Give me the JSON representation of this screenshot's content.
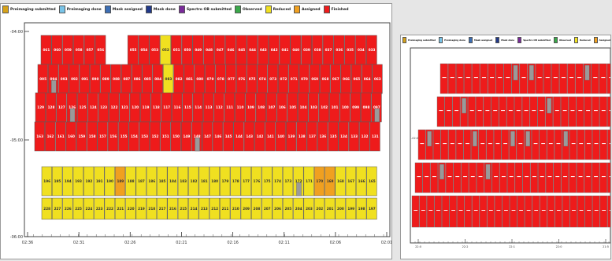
{
  "legend_left": [
    {
      "label": "Preimaging submitted",
      "color": "#d6a21a"
    },
    {
      "label": "Preimaging done",
      "color": "#79c4e8"
    },
    {
      "label": "Mask assigned",
      "color": "#3c6eb4"
    },
    {
      "label": "Mask done",
      "color": "#223a8a"
    },
    {
      "label": "Spectro OB submitted",
      "color": "#7a2a9a"
    },
    {
      "label": "Observed",
      "color": "#3aa84a"
    },
    {
      "label": "Reduced",
      "color": "#f0e020"
    },
    {
      "label": "Assigned",
      "color": "#f0a020"
    },
    {
      "label": "Finished",
      "color": "#ee1b1b"
    }
  ],
  "legend_right": [
    {
      "label": "Preimaging submitted",
      "color": "#d6a21a"
    },
    {
      "label": "Preimaging done",
      "color": "#79c4e8"
    },
    {
      "label": "Mask assigned",
      "color": "#3c6eb4"
    },
    {
      "label": "Mask done",
      "color": "#223a8a"
    },
    {
      "label": "Spectro OB submitted",
      "color": "#7a2a9a"
    },
    {
      "label": "Observed",
      "color": "#3aa84a"
    },
    {
      "label": "Reduced",
      "color": "#f0e020"
    },
    {
      "label": "Assigned",
      "color": "#f0a020"
    },
    {
      "label": "Finished",
      "color": "#ee1b1b"
    }
  ],
  "left_grid": {
    "y_ticks": [
      "-04:00",
      "-05:00",
      "-06:00"
    ],
    "x_ticks": [
      "02:36",
      "02:31",
      "02:26",
      "02:21",
      "02:16",
      "02:11",
      "02:06",
      "02:01"
    ],
    "rows": [
      {
        "cells": [
          "061",
          "060",
          "059",
          "058",
          "057",
          "056",
          "",
          "",
          "055",
          "054",
          "053",
          "052",
          "051",
          "050",
          "049",
          "048",
          "047",
          "046",
          "045",
          "044",
          "043",
          "042",
          "041",
          "040",
          "039",
          "038",
          "037",
          "036",
          "035",
          "034",
          "033"
        ],
        "status": [
          "F",
          "F",
          "F",
          "F",
          "F",
          "F",
          "",
          "",
          "F",
          "F",
          "F",
          "R",
          "F",
          "F",
          "F",
          "F",
          "F",
          "F",
          "F",
          "F",
          "F",
          "F",
          "F",
          "F",
          "F",
          "F",
          "F",
          "F",
          "F",
          "F",
          "F"
        ]
      },
      {
        "cells": [
          "095",
          "094",
          "093",
          "092",
          "091",
          "090",
          "089",
          "088",
          "087",
          "086",
          "085",
          "084",
          "083",
          "082",
          "081",
          "080",
          "079",
          "078",
          "077",
          "076",
          "075",
          "074",
          "073",
          "072",
          "071",
          "070",
          "069",
          "068",
          "067",
          "066",
          "065",
          "064",
          "063"
        ],
        "status": [
          "F",
          "F",
          "F",
          "F",
          "F",
          "F",
          "F",
          "F",
          "F",
          "F",
          "F",
          "F",
          "R",
          "F",
          "F",
          "F",
          "F",
          "F",
          "F",
          "F",
          "F",
          "F",
          "F",
          "F",
          "F",
          "F",
          "F",
          "F",
          "F",
          "F",
          "F",
          "F",
          "F"
        ]
      },
      {
        "cells": [
          "129",
          "128",
          "127",
          "126",
          "125",
          "124",
          "123",
          "122",
          "121",
          "120",
          "119",
          "118",
          "117",
          "116",
          "115",
          "114",
          "113",
          "112",
          "111",
          "110",
          "109",
          "108",
          "107",
          "106",
          "105",
          "104",
          "103",
          "102",
          "101",
          "100",
          "099",
          "098",
          "097"
        ],
        "status": [
          "F",
          "F",
          "F",
          "F",
          "F",
          "F",
          "F",
          "F",
          "F",
          "F",
          "F",
          "F",
          "F",
          "F",
          "F",
          "F",
          "F",
          "F",
          "F",
          "F",
          "F",
          "F",
          "F",
          "F",
          "F",
          "F",
          "F",
          "F",
          "F",
          "F",
          "F",
          "F",
          "F"
        ]
      },
      {
        "cells": [
          "163",
          "162",
          "161",
          "160",
          "159",
          "158",
          "157",
          "156",
          "155",
          "154",
          "153",
          "152",
          "151",
          "150",
          "149",
          "148",
          "147",
          "146",
          "145",
          "144",
          "143",
          "142",
          "141",
          "140",
          "139",
          "138",
          "137",
          "136",
          "135",
          "134",
          "133",
          "132",
          "131"
        ],
        "status": [
          "F",
          "F",
          "F",
          "F",
          "F",
          "F",
          "F",
          "F",
          "F",
          "F",
          "F",
          "F",
          "F",
          "F",
          "F",
          "F",
          "F",
          "F",
          "F",
          "F",
          "F",
          "F",
          "F",
          "F",
          "F",
          "F",
          "F",
          "F",
          "F",
          "F",
          "F",
          "F",
          "F"
        ]
      },
      {
        "cells": [
          "196",
          "195",
          "194",
          "193",
          "192",
          "191",
          "190",
          "189",
          "188",
          "187",
          "186",
          "185",
          "184",
          "183",
          "182",
          "181",
          "180",
          "179",
          "178",
          "177",
          "176",
          "175",
          "174",
          "173",
          "172",
          "171",
          "170",
          "169",
          "168",
          "167",
          "166",
          "165"
        ],
        "status": [
          "R",
          "R",
          "R",
          "R",
          "R",
          "R",
          "R",
          "A",
          "R",
          "R",
          "R",
          "R",
          "R",
          "R",
          "R",
          "R",
          "R",
          "R",
          "R",
          "R",
          "R",
          "R",
          "R",
          "R",
          "R",
          "R",
          "A",
          "A",
          "R",
          "R",
          "R",
          "R"
        ]
      },
      {
        "cells": [
          "228",
          "227",
          "226",
          "225",
          "224",
          "223",
          "222",
          "221",
          "220",
          "219",
          "218",
          "217",
          "216",
          "215",
          "214",
          "213",
          "212",
          "211",
          "210",
          "209",
          "208",
          "207",
          "206",
          "205",
          "204",
          "203",
          "202",
          "201",
          "200",
          "199",
          "198",
          "197"
        ],
        "status": [
          "R",
          "R",
          "R",
          "R",
          "R",
          "R",
          "R",
          "R",
          "R",
          "R",
          "R",
          "R",
          "R",
          "R",
          "R",
          "R",
          "R",
          "R",
          "R",
          "R",
          "R",
          "R",
          "R",
          "R",
          "R",
          "R",
          "R",
          "R",
          "R",
          "R",
          "R",
          "R"
        ]
      }
    ]
  },
  "right_grid": {
    "y_ticks": [
      "-02:0"
    ],
    "x_ticks": [
      "22:0",
      "22:2",
      "22:1",
      "22:0",
      "21:5"
    ]
  }
}
